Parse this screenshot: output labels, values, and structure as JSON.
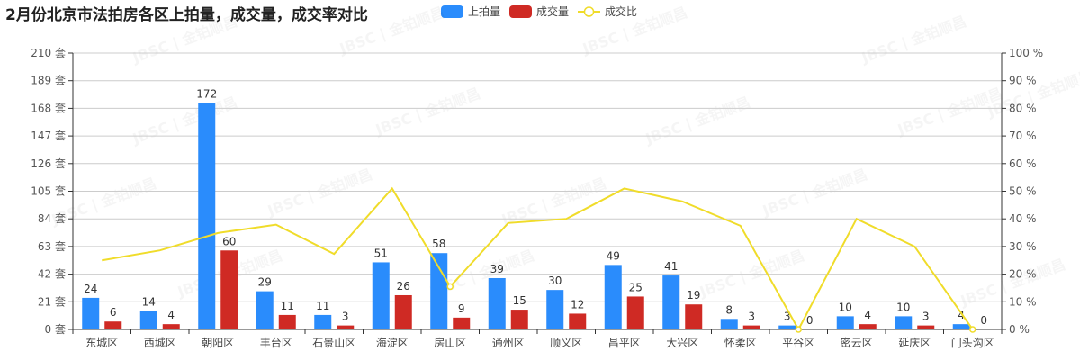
{
  "title": "2月份北京市法拍房各区上拍量，成交量，成交率对比",
  "legend": [
    {
      "label": "上拍量",
      "color": "#2a8cfc",
      "type": "bar"
    },
    {
      "label": "成交量",
      "color": "#cf2a24",
      "type": "bar"
    },
    {
      "label": "成交比",
      "color": "#f0dc2a",
      "type": "line"
    }
  ],
  "watermark": "JBSC | 金铂顺昌",
  "chart_data": {
    "type": "bar",
    "title": "2月份北京市法拍房各区上拍量，成交量，成交率对比",
    "categories": [
      "东城区",
      "西城区",
      "朝阳区",
      "丰台区",
      "石景山区",
      "海淀区",
      "房山区",
      "通州区",
      "顺义区",
      "昌平区",
      "大兴区",
      "怀柔区",
      "平谷区",
      "密云区",
      "延庆区",
      "门头沟区"
    ],
    "series": [
      {
        "name": "上拍量",
        "type": "bar",
        "axis": "left",
        "color": "#2a8cfc",
        "values": [
          24,
          14,
          172,
          29,
          11,
          51,
          58,
          39,
          30,
          49,
          41,
          8,
          3,
          10,
          10,
          4
        ]
      },
      {
        "name": "成交量",
        "type": "bar",
        "axis": "left",
        "color": "#cf2a24",
        "values": [
          6,
          4,
          60,
          11,
          3,
          26,
          9,
          15,
          12,
          25,
          19,
          3,
          0,
          4,
          3,
          0
        ]
      },
      {
        "name": "成交比",
        "type": "line",
        "axis": "right",
        "color": "#f0dc2a",
        "values": [
          25.0,
          28.6,
          34.9,
          37.9,
          27.3,
          51.0,
          15.5,
          38.5,
          40.0,
          51.0,
          46.3,
          37.5,
          0.0,
          40.0,
          30.0,
          0.0
        ]
      }
    ],
    "y_left": {
      "min": 0,
      "max": 210,
      "interval": 21,
      "unit": "套",
      "ticks": [
        "0 套",
        "21 套",
        "42 套",
        "63 套",
        "84 套",
        "105 套",
        "126 套",
        "147 套",
        "168 套",
        "189 套",
        "210 套"
      ]
    },
    "y_right": {
      "min": 0,
      "max": 100,
      "interval": 10,
      "unit": "%",
      "ticks": [
        "0 %",
        "10 %",
        "20 %",
        "30 %",
        "40 %",
        "50 %",
        "60 %",
        "70 %",
        "80 %",
        "90 %",
        "100 %"
      ]
    },
    "xlabel": "",
    "ylabel": "",
    "grid": true,
    "legend_position": "top"
  }
}
